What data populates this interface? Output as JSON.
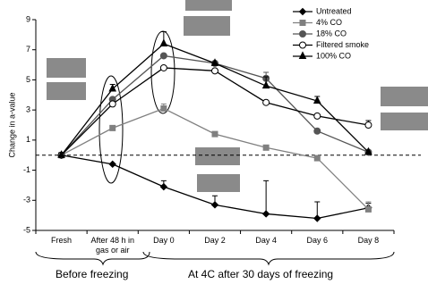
{
  "chart_data": {
    "type": "line",
    "y_label": "Change in a-value",
    "categories": [
      "Fresh",
      "After 48 h in gas or air",
      "Day 0",
      "Day 2",
      "Day 4",
      "Day 6",
      "Day 8"
    ],
    "series": [
      {
        "name": "Untreated",
        "color": "#000000",
        "marker": "diamond",
        "values": [
          0,
          -0.6,
          -2.1,
          -3.3,
          -3.9,
          -4.2,
          -3.5
        ],
        "errors": [
          null,
          null,
          0.4,
          0.6,
          2.2,
          1.1,
          0.3
        ]
      },
      {
        "name": "4% CO",
        "color": "#808080",
        "marker": "square",
        "values": [
          0,
          1.8,
          3.1,
          1.4,
          0.5,
          -0.2,
          -3.6
        ],
        "errors": [
          null,
          null,
          0.3,
          null,
          null,
          null,
          0.5
        ]
      },
      {
        "name": "18% CO",
        "color": "#555555",
        "marker": "circle",
        "values": [
          0,
          3.7,
          6.6,
          6.1,
          5.1,
          1.6,
          0.2
        ],
        "errors": [
          null,
          null,
          null,
          null,
          0.4,
          null,
          null
        ]
      },
      {
        "name": "Filtered smoke",
        "color": "#000000",
        "marker": "open-circle",
        "values": [
          0,
          3.4,
          5.8,
          5.6,
          3.5,
          2.6,
          2.0
        ],
        "errors": [
          null,
          null,
          null,
          null,
          null,
          null,
          0.3
        ]
      },
      {
        "name": "100% CO",
        "color": "#000000",
        "marker": "triangle",
        "values": [
          0,
          4.4,
          7.4,
          6.1,
          4.6,
          3.6,
          0.2
        ],
        "errors": [
          null,
          0.3,
          0.8,
          null,
          0.6,
          0.3,
          null
        ]
      }
    ],
    "ylim": [
      -5,
      9
    ],
    "yticks": [
      -5,
      -3,
      -1,
      1,
      3,
      5,
      7,
      9
    ],
    "reference_line": 0,
    "groups": [
      "Before freezing",
      "At 4C after 30 days of freezing"
    ]
  }
}
